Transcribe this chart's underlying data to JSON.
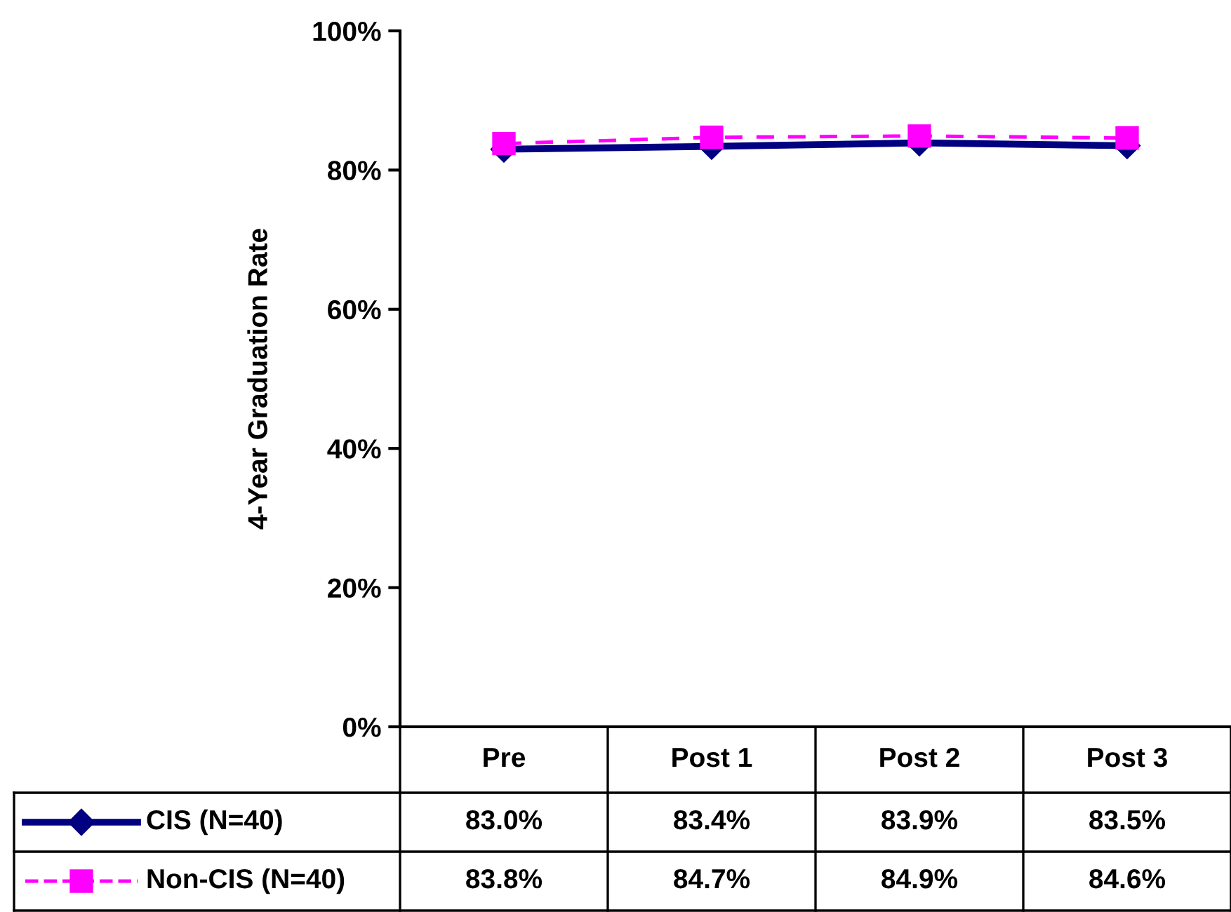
{
  "chart_data": {
    "type": "line",
    "ylabel": "4-Year Graduation Rate",
    "categories": [
      "Pre",
      "Post 1",
      "Post 2",
      "Post 3"
    ],
    "series": [
      {
        "name": "CIS (N=40)",
        "color": "#000080",
        "marker": "diamond",
        "line_style": "solid",
        "values": [
          83.0,
          83.4,
          83.9,
          83.5
        ],
        "value_labels": [
          "83.0%",
          "83.4%",
          "83.9%",
          "83.5%"
        ]
      },
      {
        "name": "Non-CIS (N=40)",
        "color": "#ff00ff",
        "marker": "square",
        "line_style": "dashed",
        "values": [
          83.8,
          84.7,
          84.9,
          84.6
        ],
        "value_labels": [
          "83.8%",
          "84.7%",
          "84.9%",
          "84.6%"
        ]
      }
    ],
    "ylim": [
      0,
      100
    ],
    "yticks": [
      {
        "value": 0,
        "label": "0%"
      },
      {
        "value": 20,
        "label": "20%"
      },
      {
        "value": 40,
        "label": "40%"
      },
      {
        "value": 60,
        "label": "60%"
      },
      {
        "value": 80,
        "label": "80%"
      },
      {
        "value": 100,
        "label": "100%"
      }
    ],
    "grid": false,
    "legend": "bottom"
  }
}
